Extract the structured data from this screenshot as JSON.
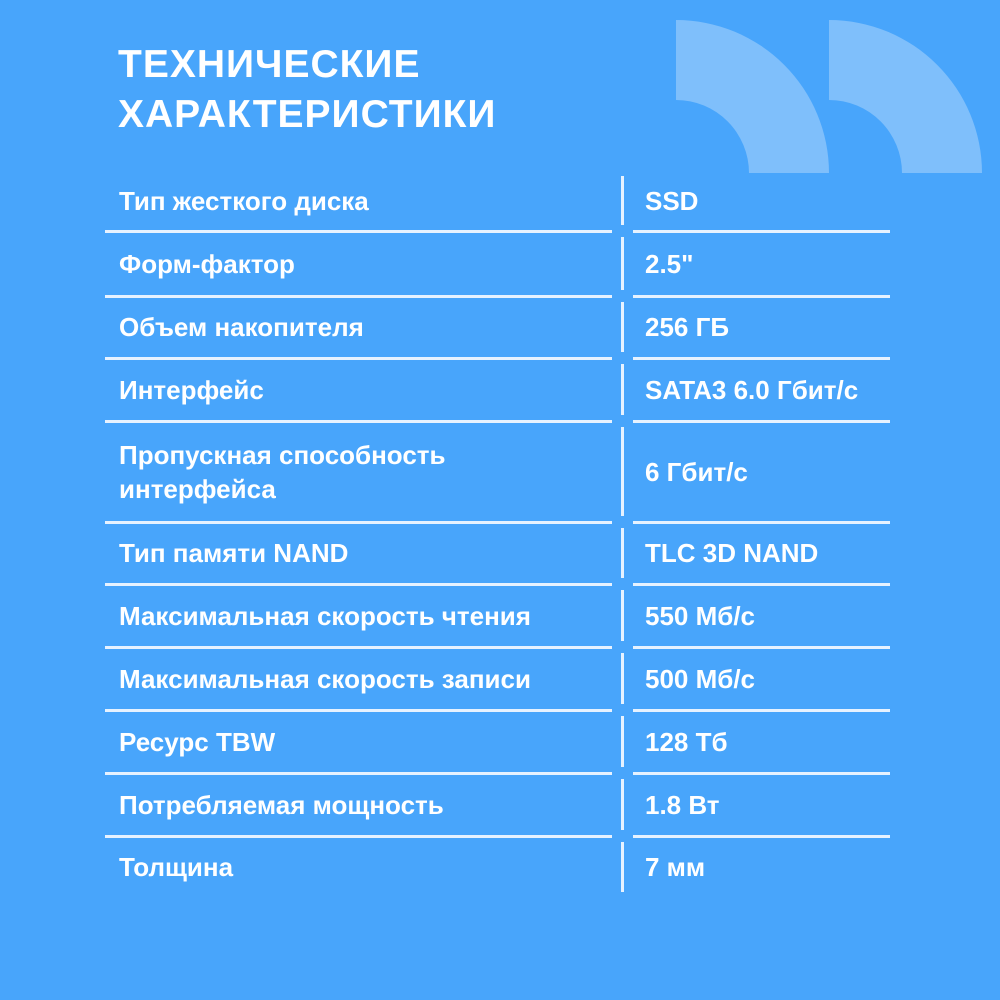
{
  "title": [
    "ТЕХНИЧЕСКИЕ",
    "ХАРАКТЕРИСТИКИ"
  ],
  "colors": {
    "background": "#48a5fb",
    "quote_decoration": "#7fbffb",
    "text": "#ffffff"
  },
  "decoration_icon": "closing-quote-icon",
  "specs": [
    {
      "label": "Тип жесткого диска",
      "value": "SSD"
    },
    {
      "label": "Форм-фактор",
      "value": "2.5\""
    },
    {
      "label": "Объем накопителя",
      "value": "256 ГБ"
    },
    {
      "label": "Интерфейс",
      "value": "SATA3 6.0 Гбит/с"
    },
    {
      "label": "Пропускная способность интерфейса",
      "value": "6 Гбит/с"
    },
    {
      "label": "Тип памяти NAND",
      "value": "TLC 3D NAND"
    },
    {
      "label": "Максимальная скорость чтения",
      "value": "550 Мб/с"
    },
    {
      "label": "Максимальная скорость записи",
      "value": "500 Мб/с"
    },
    {
      "label": "Ресурс TBW",
      "value": "128 Тб"
    },
    {
      "label": "Потребляемая мощность",
      "value": "1.8 Вт"
    },
    {
      "label": "Толщина",
      "value": "7 мм"
    }
  ]
}
